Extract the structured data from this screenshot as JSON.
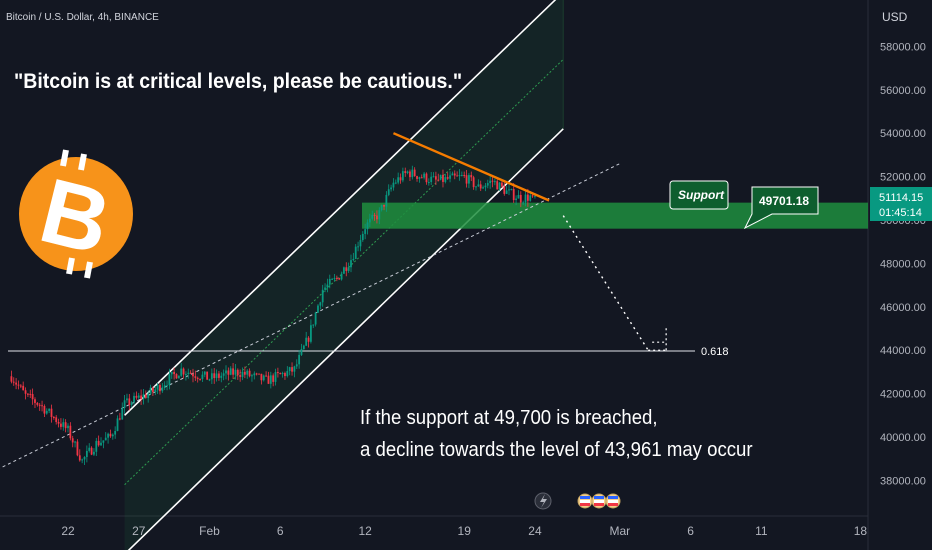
{
  "header": {
    "symbol_text": "Bitcoin / U.S. Dollar, 4h, BINANCE"
  },
  "currency_label": "USD",
  "price_badge": {
    "price": "51114.15",
    "countdown": "01:45:14",
    "color": "#089981"
  },
  "annotations": {
    "headline": "\"Bitcoin is at critical levels, please be cautious.\"",
    "support_label": "Support",
    "support_value": "49701.18",
    "fib_label": "0.618",
    "scenario_line1": "If the support at 49,700 is breached,",
    "scenario_line2": "a decline towards the level of 43,961 may occur"
  },
  "logo": {
    "symbol": "B",
    "color": "#F7931A"
  },
  "colors": {
    "background": "#131722",
    "bull": "#089981",
    "bear": "#F23645",
    "support_zone": "#1E8E3E",
    "trend_line": "#F57C00",
    "channel": "#FFFFFF"
  },
  "icons": [
    "lightning-icon",
    "flag-icon",
    "flag-icon",
    "flag-icon"
  ],
  "chart_data": {
    "type": "candlestick",
    "title": "Bitcoin / U.S. Dollar, 4h, BINANCE",
    "ylabel": "USD",
    "ylim": [
      36400,
      60000
    ],
    "y_ticks": [
      38000,
      40000,
      42000,
      44000,
      46000,
      48000,
      50000,
      52000,
      54000,
      56000,
      58000
    ],
    "y_tick_labels": [
      "38000.00",
      "40000.00",
      "42000.00",
      "44000.00",
      "46000.00",
      "48000.00",
      "50000.00",
      "52000.00",
      "54000.00",
      "56000.00",
      "58000.00"
    ],
    "x_tick_labels": [
      "22",
      "27",
      "Feb",
      "6",
      "12",
      "19",
      "24",
      "Mar",
      "6",
      "11",
      "18"
    ],
    "price_path": [
      [
        "2024-01-18",
        42800
      ],
      [
        "2024-01-19",
        41900
      ],
      [
        "2024-01-20",
        41500
      ],
      [
        "2024-01-22",
        40300
      ],
      [
        "2024-01-23",
        38900
      ],
      [
        "2024-01-24",
        39700
      ],
      [
        "2024-01-25",
        40000
      ],
      [
        "2024-01-26",
        41500
      ],
      [
        "2024-01-28",
        42100
      ],
      [
        "2024-01-30",
        43100
      ],
      [
        "2024-02-01",
        42700
      ],
      [
        "2024-02-03",
        43000
      ],
      [
        "2024-02-05",
        42600
      ],
      [
        "2024-02-07",
        43100
      ],
      [
        "2024-02-08",
        44600
      ],
      [
        "2024-02-09",
        46800
      ],
      [
        "2024-02-10",
        47300
      ],
      [
        "2024-02-11",
        48200
      ],
      [
        "2024-02-12",
        49700
      ],
      [
        "2024-02-13",
        50300
      ],
      [
        "2024-02-14",
        51700
      ],
      [
        "2024-02-15",
        52200
      ],
      [
        "2024-02-17",
        51800
      ],
      [
        "2024-02-19",
        52000
      ],
      [
        "2024-02-20",
        51500
      ],
      [
        "2024-02-21",
        51800
      ],
      [
        "2024-02-22",
        51300
      ],
      [
        "2024-02-23",
        51000
      ],
      [
        "2024-02-24",
        51114.15
      ]
    ],
    "last_price": 51114.15,
    "support_zone": [
      49600,
      50800
    ],
    "support_level": 49701.18,
    "fib_0618_level": 43961,
    "ascending_channel": {
      "upper": [
        [
          "2024-01-26",
          41000
        ],
        [
          "2024-02-26",
          60500
        ]
      ],
      "middle": [
        [
          "2024-01-26",
          37800
        ],
        [
          "2024-02-26",
          57400
        ]
      ],
      "lower": [
        [
          "2024-01-26",
          34600
        ],
        [
          "2024-02-26",
          54200
        ]
      ]
    },
    "resistance_trendline": [
      [
        "2024-02-14",
        54000
      ],
      [
        "2024-02-25",
        50900
      ]
    ],
    "dashed_trendline": [
      [
        "2024-01-17",
        38500
      ],
      [
        "2024-03-01",
        52600
      ]
    ],
    "projection": [
      [
        "2024-02-26",
        50200
      ],
      [
        "2024-03-03",
        44000
      ]
    ]
  }
}
